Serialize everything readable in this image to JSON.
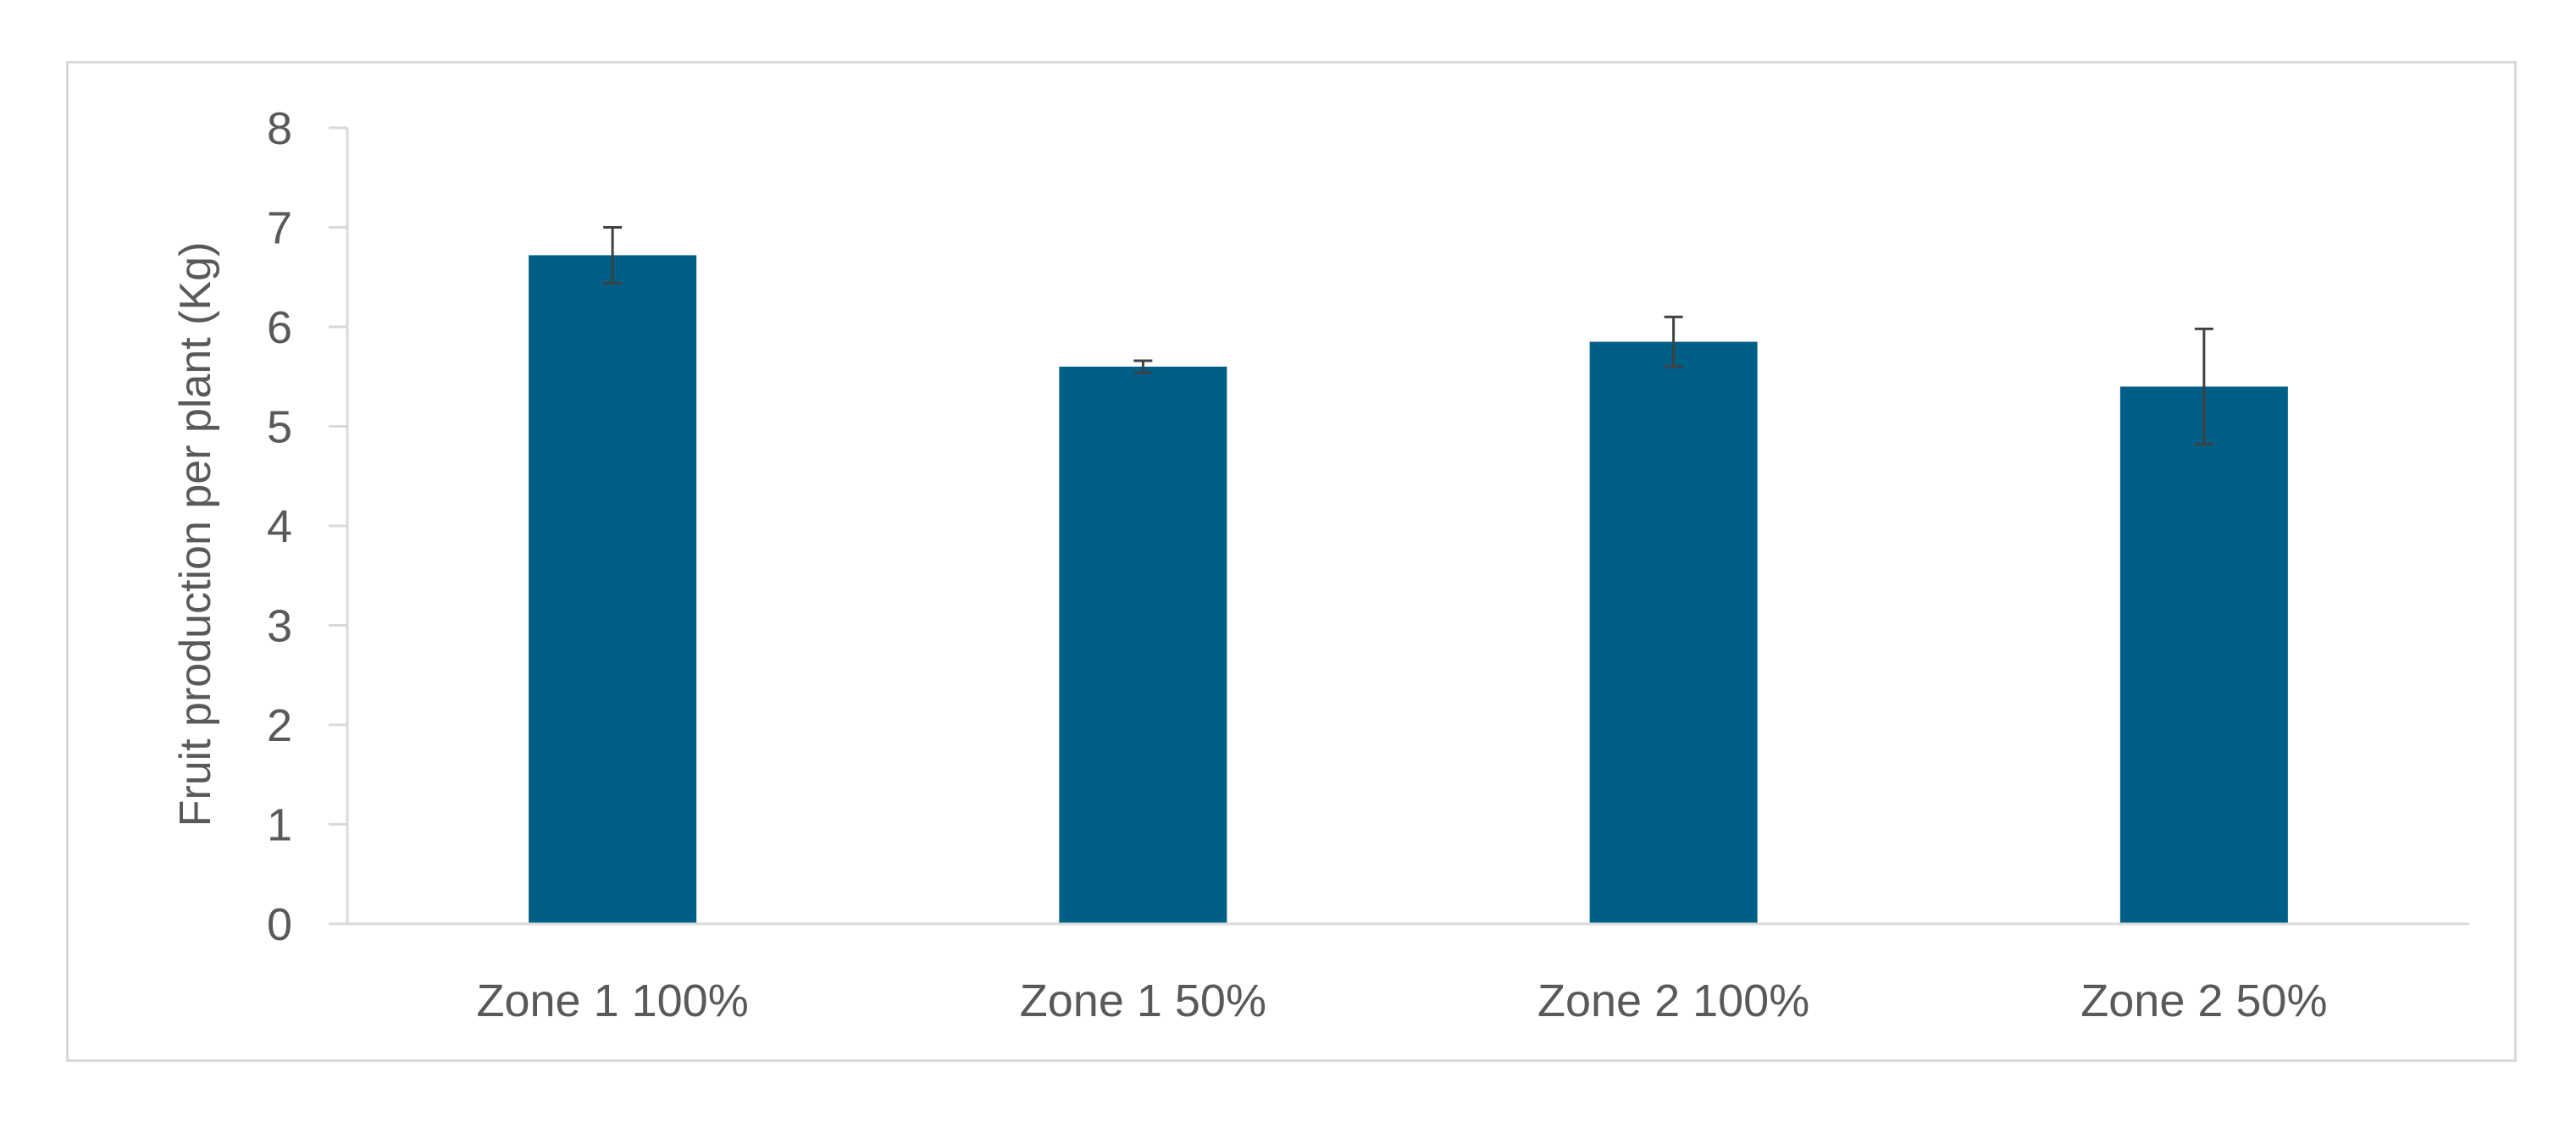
{
  "chart_data": {
    "type": "bar",
    "title": "",
    "xlabel": "",
    "ylabel": "Fruit production per plant (Kg)",
    "categories": [
      "Zone 1 100%",
      "Zone 1 50%",
      "Zone 2 100%",
      "Zone 2 50%"
    ],
    "values": [
      6.72,
      5.6,
      5.85,
      5.4
    ],
    "error": [
      0.28,
      0.06,
      0.25,
      0.58
    ],
    "ylim": [
      0,
      8
    ],
    "yticks": [
      "0",
      "1",
      "2",
      "3",
      "4",
      "5",
      "6",
      "7",
      "8"
    ],
    "grid": false,
    "legend": "none",
    "colors": {
      "bar": "#005F87",
      "error_bar": "#404040",
      "axis": "#d9d9d9",
      "text": "#595959"
    }
  }
}
